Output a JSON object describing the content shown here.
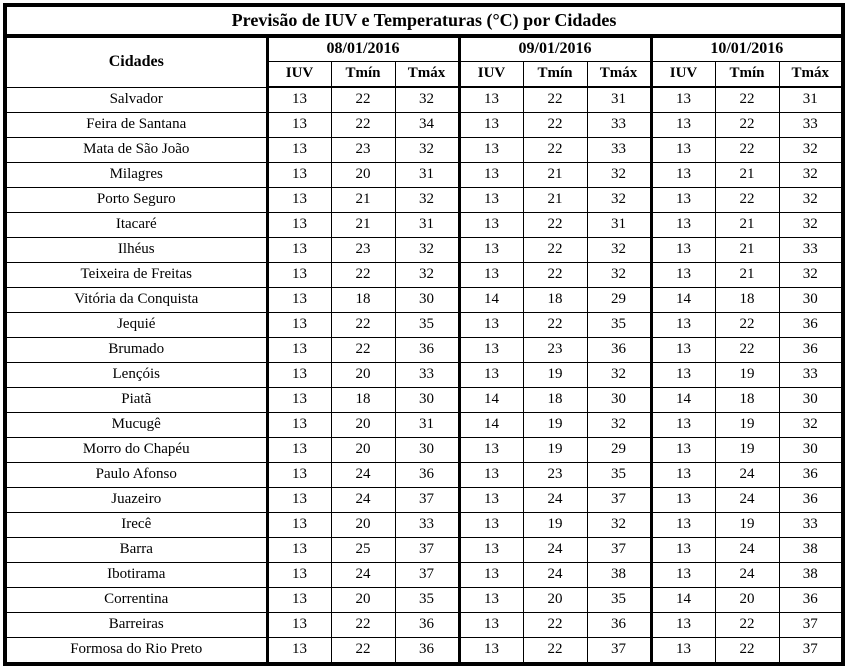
{
  "table": {
    "title": "Previsão de IUV e Temperaturas (°C) por Cidades",
    "cities_header": "Cidades",
    "dates": [
      "08/01/2016",
      "09/01/2016",
      "10/01/2016"
    ],
    "columns": [
      "IUV",
      "Tmín",
      "Tmáx"
    ]
  },
  "chart_data": {
    "type": "table",
    "title": "Previsão de IUV e Temperaturas (°C) por Cidades",
    "column_groups": [
      "08/01/2016",
      "09/01/2016",
      "10/01/2016"
    ],
    "sub_columns": [
      "IUV",
      "Tmín",
      "Tmáx"
    ],
    "rows": [
      {
        "city": "Salvador",
        "values": [
          13,
          22,
          32,
          13,
          22,
          31,
          13,
          22,
          31
        ]
      },
      {
        "city": "Feira de Santana",
        "values": [
          13,
          22,
          34,
          13,
          22,
          33,
          13,
          22,
          33
        ]
      },
      {
        "city": "Mata de São João",
        "values": [
          13,
          23,
          32,
          13,
          22,
          33,
          13,
          22,
          32
        ]
      },
      {
        "city": "Milagres",
        "values": [
          13,
          20,
          31,
          13,
          21,
          32,
          13,
          21,
          32
        ]
      },
      {
        "city": "Porto Seguro",
        "values": [
          13,
          21,
          32,
          13,
          21,
          32,
          13,
          22,
          32
        ]
      },
      {
        "city": "Itacaré",
        "values": [
          13,
          21,
          31,
          13,
          22,
          31,
          13,
          21,
          32
        ]
      },
      {
        "city": "Ilhéus",
        "values": [
          13,
          23,
          32,
          13,
          22,
          32,
          13,
          21,
          33
        ]
      },
      {
        "city": "Teixeira de Freitas",
        "values": [
          13,
          22,
          32,
          13,
          22,
          32,
          13,
          21,
          32
        ]
      },
      {
        "city": "Vitória da Conquista",
        "values": [
          13,
          18,
          30,
          14,
          18,
          29,
          14,
          18,
          30
        ]
      },
      {
        "city": "Jequié",
        "values": [
          13,
          22,
          35,
          13,
          22,
          35,
          13,
          22,
          36
        ]
      },
      {
        "city": "Brumado",
        "values": [
          13,
          22,
          36,
          13,
          23,
          36,
          13,
          22,
          36
        ]
      },
      {
        "city": "Lençóis",
        "values": [
          13,
          20,
          33,
          13,
          19,
          32,
          13,
          19,
          33
        ]
      },
      {
        "city": "Piatã",
        "values": [
          13,
          18,
          30,
          14,
          18,
          30,
          14,
          18,
          30
        ]
      },
      {
        "city": "Mucugê",
        "values": [
          13,
          20,
          31,
          14,
          19,
          32,
          13,
          19,
          32
        ]
      },
      {
        "city": "Morro do Chapéu",
        "values": [
          13,
          20,
          30,
          13,
          19,
          29,
          13,
          19,
          30
        ]
      },
      {
        "city": "Paulo Afonso",
        "values": [
          13,
          24,
          36,
          13,
          23,
          35,
          13,
          24,
          36
        ]
      },
      {
        "city": "Juazeiro",
        "values": [
          13,
          24,
          37,
          13,
          24,
          37,
          13,
          24,
          36
        ]
      },
      {
        "city": "Irecê",
        "values": [
          13,
          20,
          33,
          13,
          19,
          32,
          13,
          19,
          33
        ]
      },
      {
        "city": "Barra",
        "values": [
          13,
          25,
          37,
          13,
          24,
          37,
          13,
          24,
          38
        ]
      },
      {
        "city": "Ibotirama",
        "values": [
          13,
          24,
          37,
          13,
          24,
          38,
          13,
          24,
          38
        ]
      },
      {
        "city": "Correntina",
        "values": [
          13,
          20,
          35,
          13,
          20,
          35,
          14,
          20,
          36
        ]
      },
      {
        "city": "Barreiras",
        "values": [
          13,
          22,
          36,
          13,
          22,
          36,
          13,
          22,
          37
        ]
      },
      {
        "city": "Formosa do Rio Preto",
        "values": [
          13,
          22,
          36,
          13,
          22,
          37,
          13,
          22,
          37
        ]
      }
    ]
  }
}
